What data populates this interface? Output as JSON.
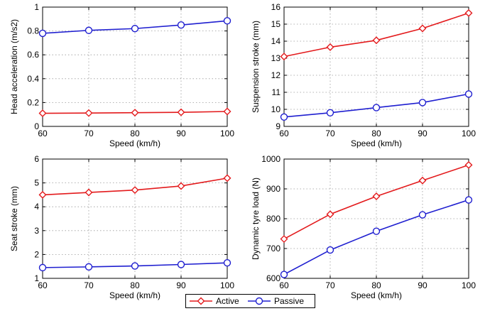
{
  "legend": {
    "placement": "bottom-center",
    "entries": [
      {
        "label": "Active",
        "color": "#e31a1c",
        "marker": "diamond"
      },
      {
        "label": "Passive",
        "color": "#1f1fd0",
        "marker": "circle"
      }
    ]
  },
  "chart_data": [
    {
      "type": "line",
      "title": "",
      "xlabel": "Speed (km/h)",
      "ylabel": "Head acceleration (m/s2)",
      "x": [
        60,
        70,
        80,
        90,
        100
      ],
      "xlim": [
        60,
        100
      ],
      "ylim": [
        0,
        1
      ],
      "xticks": [
        "60",
        "70",
        "80",
        "90",
        "100"
      ],
      "yticks": [
        "0",
        "0.2",
        "0.4",
        "0.6",
        "0.8",
        "1"
      ],
      "ytick_values": [
        0,
        0.2,
        0.4,
        0.6,
        0.8,
        1
      ],
      "grid": true,
      "series": [
        {
          "name": "Active",
          "values": [
            0.11,
            0.112,
            0.115,
            0.118,
            0.125
          ]
        },
        {
          "name": "Passive",
          "values": [
            0.78,
            0.805,
            0.82,
            0.85,
            0.885
          ]
        }
      ]
    },
    {
      "type": "line",
      "title": "",
      "xlabel": "Speed (km/h)",
      "ylabel": "Suspension stroke (mm)",
      "x": [
        60,
        70,
        80,
        90,
        100
      ],
      "xlim": [
        60,
        100
      ],
      "ylim": [
        9,
        16
      ],
      "xticks": [
        "60",
        "70",
        "80",
        "90",
        "100"
      ],
      "yticks": [
        "9",
        "10",
        "11",
        "12",
        "13",
        "14",
        "15",
        "16"
      ],
      "ytick_values": [
        9,
        10,
        11,
        12,
        13,
        14,
        15,
        16
      ],
      "grid": true,
      "series": [
        {
          "name": "Active",
          "values": [
            13.1,
            13.65,
            14.05,
            14.75,
            15.65
          ]
        },
        {
          "name": "Passive",
          "values": [
            9.55,
            9.8,
            10.1,
            10.4,
            10.9
          ]
        }
      ]
    },
    {
      "type": "line",
      "title": "",
      "xlabel": "Speed (km/h)",
      "ylabel": "Seat stroke (mm)",
      "x": [
        60,
        70,
        80,
        90,
        100
      ],
      "xlim": [
        60,
        100
      ],
      "ylim": [
        1,
        6
      ],
      "xticks": [
        "60",
        "70",
        "80",
        "90",
        "100"
      ],
      "yticks": [
        "1",
        "2",
        "3",
        "4",
        "5",
        "6"
      ],
      "ytick_values": [
        1,
        2,
        3,
        4,
        5,
        6
      ],
      "grid": true,
      "series": [
        {
          "name": "Active",
          "values": [
            4.5,
            4.6,
            4.7,
            4.87,
            5.2
          ]
        },
        {
          "name": "Passive",
          "values": [
            1.45,
            1.48,
            1.52,
            1.58,
            1.65
          ]
        }
      ]
    },
    {
      "type": "line",
      "title": "",
      "xlabel": "Speed (km/h)",
      "ylabel": "Dynamic tyre load (N)",
      "x": [
        60,
        70,
        80,
        90,
        100
      ],
      "xlim": [
        60,
        100
      ],
      "ylim": [
        600,
        1000
      ],
      "xticks": [
        "60",
        "70",
        "80",
        "90",
        "100"
      ],
      "yticks": [
        "600",
        "700",
        "800",
        "900",
        "1000"
      ],
      "ytick_values": [
        600,
        700,
        800,
        900,
        1000
      ],
      "grid": true,
      "series": [
        {
          "name": "Active",
          "values": [
            732,
            815,
            875,
            928,
            980
          ]
        },
        {
          "name": "Passive",
          "values": [
            613,
            695,
            758,
            813,
            863
          ]
        }
      ]
    }
  ]
}
